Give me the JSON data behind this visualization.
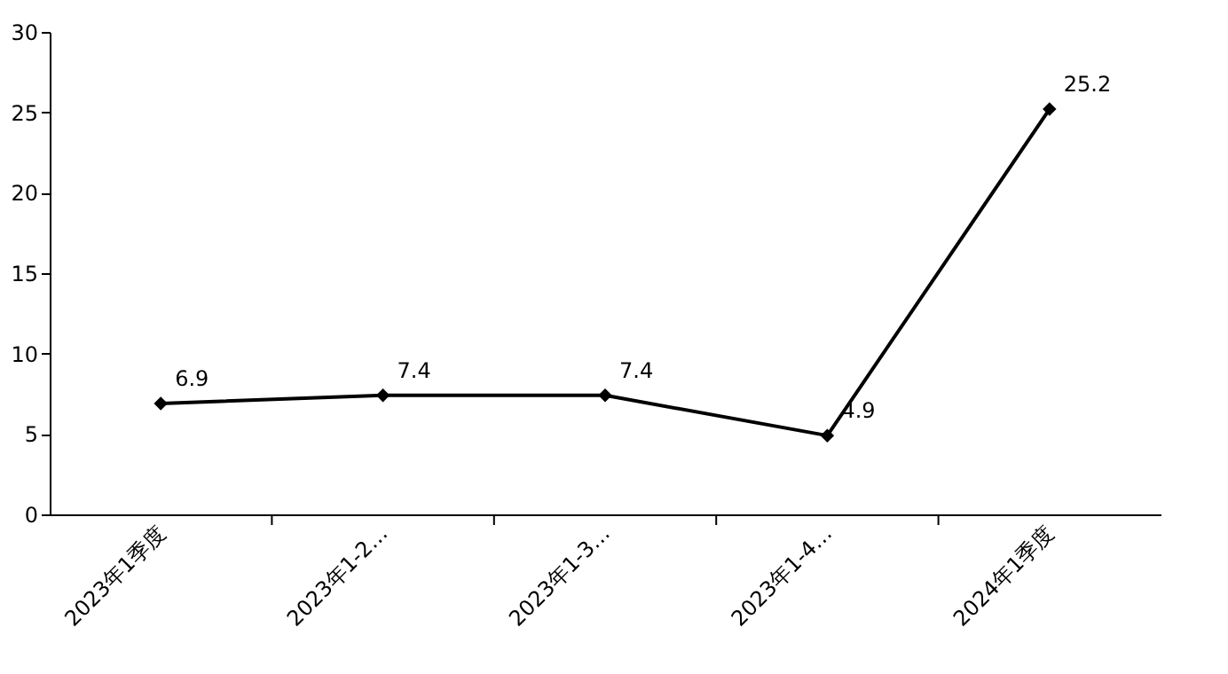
{
  "chart_data": {
    "type": "line",
    "categories": [
      "2023年1季度",
      "2023年1-2…",
      "2023年1-3…",
      "2023年1-4…",
      "2024年1季度"
    ],
    "series": [
      {
        "color": "#000000",
        "values": [
          6.9,
          7.4,
          7.4,
          4.9,
          25.2
        ]
      }
    ],
    "ylim": [
      0,
      30
    ],
    "yticks": [
      0,
      5,
      10,
      15,
      20,
      25,
      30
    ],
    "grid": false,
    "marker": "diamond",
    "line_style": "solid",
    "data_labels": true
  }
}
